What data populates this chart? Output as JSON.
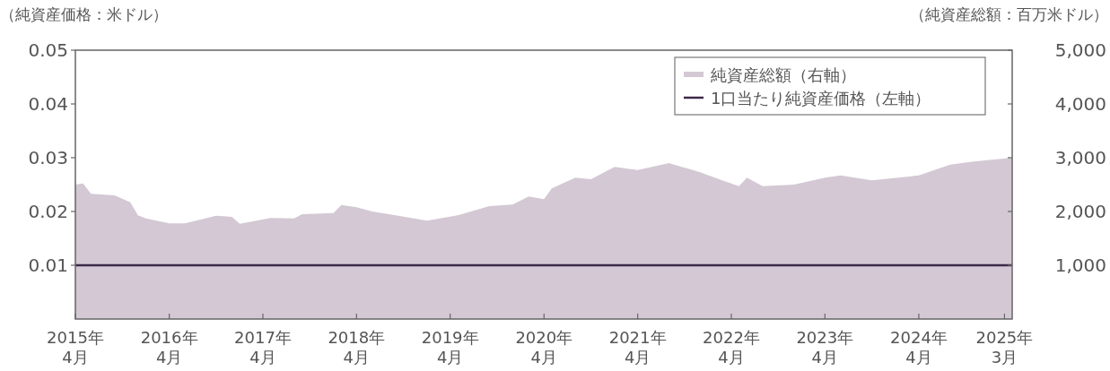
{
  "chart_data": {
    "type": "area",
    "ylabel": "（純資産価格：米ドル）",
    "y2label": "（純資産総額：百万米ドル）",
    "xlim": [
      "2015-04-01",
      "2025-03-31"
    ],
    "xticks": [
      {
        "value": "2015-04",
        "label": "2015年\n4月"
      },
      {
        "value": "2016-04",
        "label": "2016年\n4月"
      },
      {
        "value": "2017-04",
        "label": "2017年\n4月"
      },
      {
        "value": "2018-04",
        "label": "2018年\n4月"
      },
      {
        "value": "2019-04",
        "label": "2019年\n4月"
      },
      {
        "value": "2020-04",
        "label": "2020年\n4月"
      },
      {
        "value": "2021-04",
        "label": "2021年\n4月"
      },
      {
        "value": "2022-04",
        "label": "2022年\n4月"
      },
      {
        "value": "2023-04",
        "label": "2023年\n4月"
      },
      {
        "value": "2024-04",
        "label": "2024年\n4月"
      },
      {
        "value": "2025-03",
        "label": "2025年\n3月"
      }
    ],
    "ylim": [
      0,
      0.05
    ],
    "yticks": [
      0.01,
      0.02,
      0.03,
      0.04,
      0.05
    ],
    "y2lim": [
      0,
      5000
    ],
    "y2ticks": [
      {
        "value": 1000,
        "label": "1,000"
      },
      {
        "value": 2000,
        "label": "2,000"
      },
      {
        "value": 3000,
        "label": "3,000"
      },
      {
        "value": 4000,
        "label": "4,000"
      },
      {
        "value": 5000,
        "label": "5,000"
      }
    ],
    "legend": "top right",
    "series": [
      {
        "name": "純資産総額（右軸）",
        "type": "area",
        "axis": "y2",
        "color": "#d3c8d3",
        "x": [
          "2015-04",
          "2015-05",
          "2015-06",
          "2015-09",
          "2015-11",
          "2015-12",
          "2016-01",
          "2016-04",
          "2016-06",
          "2016-10",
          "2016-12",
          "2017-01",
          "2017-05",
          "2017-08",
          "2017-09",
          "2018-01",
          "2018-02",
          "2018-04",
          "2018-06",
          "2018-09",
          "2019-01",
          "2019-03",
          "2019-05",
          "2019-09",
          "2019-12",
          "2020-02",
          "2020-04",
          "2020-05",
          "2020-08",
          "2020-10",
          "2021-01",
          "2021-04",
          "2021-08",
          "2021-12",
          "2022-03",
          "2022-05",
          "2022-06",
          "2022-08",
          "2022-12",
          "2023-04",
          "2023-06",
          "2023-10",
          "2024-04",
          "2024-08",
          "2024-11",
          "2025-03-31"
        ],
        "values": [
          2500,
          2520,
          2330,
          2300,
          2170,
          1930,
          1870,
          1780,
          1780,
          1920,
          1900,
          1770,
          1880,
          1870,
          1950,
          1970,
          2120,
          2080,
          2000,
          1930,
          1830,
          1880,
          1930,
          2100,
          2130,
          2280,
          2230,
          2430,
          2630,
          2600,
          2830,
          2770,
          2900,
          2730,
          2570,
          2470,
          2630,
          2470,
          2500,
          2630,
          2670,
          2580,
          2670,
          2870,
          2930,
          3000
        ]
      },
      {
        "name": "1口当たり純資産価格（左軸）",
        "type": "line",
        "axis": "y",
        "color": "#3d2a4a",
        "x": [
          "2015-04-01",
          "2025-03-31"
        ],
        "values": [
          0.01,
          0.01
        ]
      }
    ]
  }
}
